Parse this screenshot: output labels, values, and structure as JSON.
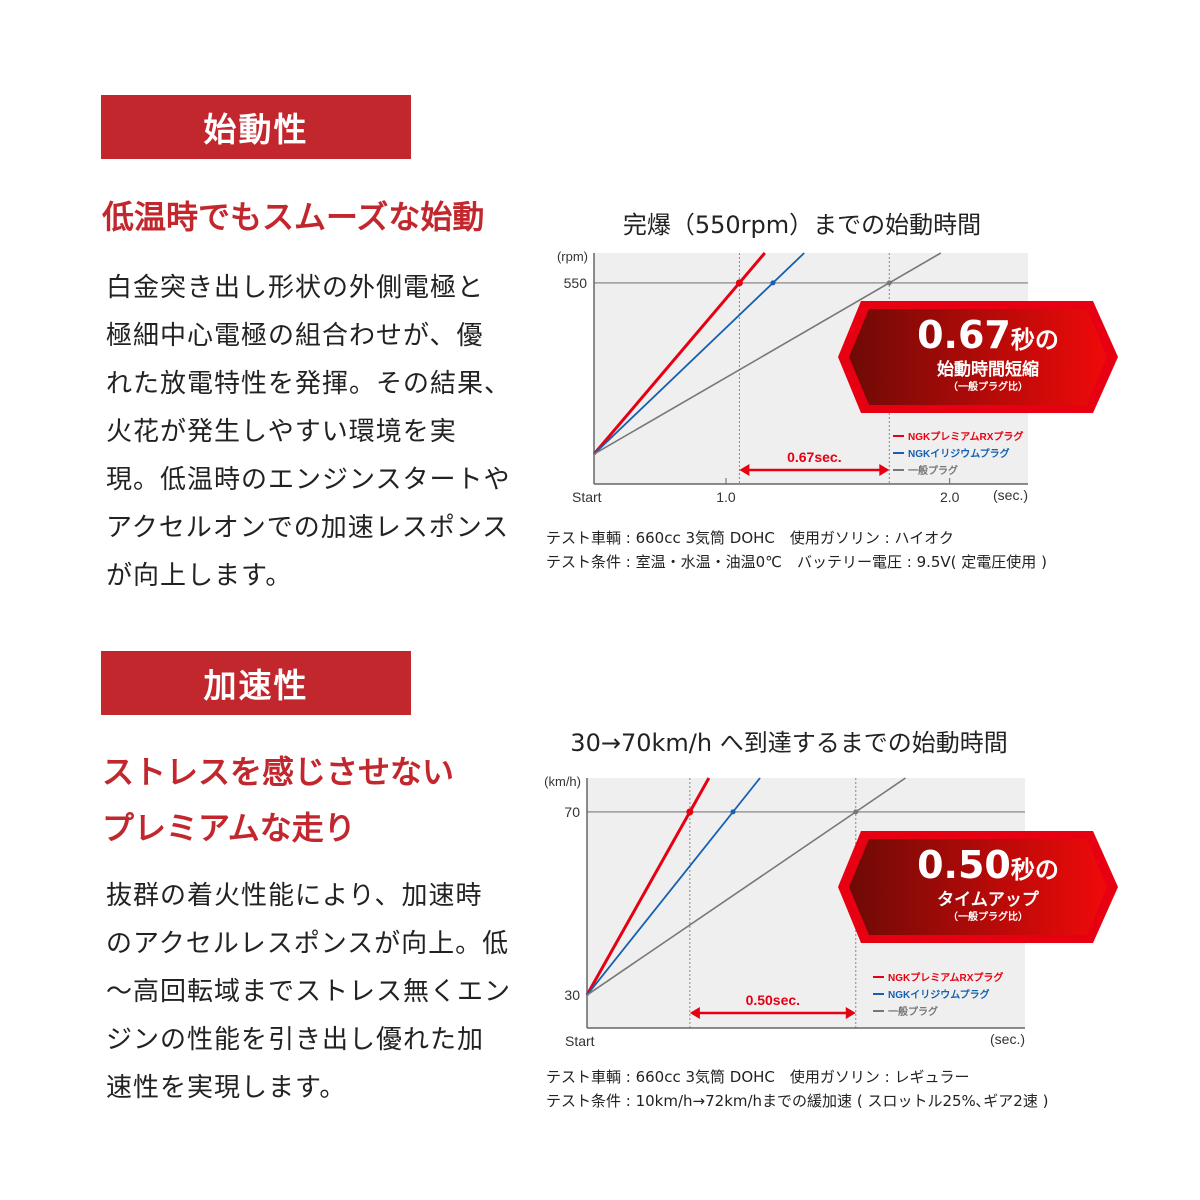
{
  "sections": [
    {
      "banner": "始動性",
      "heading_lines": [
        "低温時でもスムーズな始動"
      ],
      "body_lines": [
        "白金突き出し形状の外側電極と",
        "極細中心電極の組合わせが、優",
        "れた放電特性を発揮。その結果、",
        "火花が発生しやすい環境を実",
        "現。低温時のエンジンスタートや",
        "アクセルオンでの加速レスポンス",
        "が向上します。"
      ]
    },
    {
      "banner": "加速性",
      "heading_lines": [
        "ストレスを感じさせない",
        "プレミアムな走り"
      ],
      "body_lines": [
        "抜群の着火性能により、加速時",
        "のアクセルレスポンスが向上。低",
        "～高回転域までストレス無くエン",
        "ジンの性能を引き出し優れた加",
        "速性を実現します。"
      ]
    }
  ],
  "colors": {
    "accent": "#c1272d",
    "red_series": "#e60012",
    "blue_series": "#1560b0",
    "gray_series": "#777777",
    "plot_bg": "#efefef"
  },
  "chart_data": [
    {
      "type": "line",
      "title": "完爆（550rpm）までの始動時間",
      "ylabel": "(rpm)",
      "xlabel": "(sec.)",
      "x_start_label": "Start",
      "xticks": [
        {
          "value": 1.0,
          "label": "1.0"
        },
        {
          "value": 2.0,
          "label": "2.0"
        }
      ],
      "yticks": [
        {
          "value": 550,
          "label": "550"
        }
      ],
      "xlim": [
        0.41,
        2.35
      ],
      "ylim": [
        -96,
        646
      ],
      "grid": false,
      "target": 550,
      "series": [
        {
          "name": "NGKプレミアムRXプラグ",
          "color": "#e60012",
          "points": [
            [
              0.41,
              0
            ],
            [
              1.06,
              550
            ]
          ]
        },
        {
          "name": "NGKイリジウムプラグ",
          "color": "#1560b0",
          "points": [
            [
              0.41,
              0
            ],
            [
              1.21,
              550
            ]
          ]
        },
        {
          "name": "一般プラグ",
          "color": "#777777",
          "points": [
            [
              0.41,
              0
            ],
            [
              1.73,
              550
            ]
          ]
        }
      ],
      "difference_label": "0.67sec.",
      "legend": "bottom-right",
      "badge": {
        "big": "0.67",
        "unit": "秒の",
        "line2": "始動時間短縮",
        "line3": "（一般プラグ比）"
      },
      "notes": [
        "テスト車輌 : 660cc 3気筒 DOHC　使用ガソリン : ハイオク",
        "テスト条件 : 室温・水温・油温0℃　バッテリー電圧 : 9.5V( 定電圧使用 )"
      ]
    },
    {
      "type": "line",
      "title": "30→70km/h へ到達するまでの始動時間",
      "ylabel": "(km/h)",
      "xlabel": "(sec.)",
      "x_start_label": "Start",
      "xticks": [],
      "yticks": [
        {
          "value": 70,
          "label": "70"
        },
        {
          "value": 30,
          "label": "30"
        }
      ],
      "xlim": [
        0,
        1.32
      ],
      "ylim": [
        22.8,
        77.4
      ],
      "grid": false,
      "target": 70,
      "series": [
        {
          "name": "NGKプレミアムRXプラグ",
          "color": "#e60012",
          "points": [
            [
              0,
              30
            ],
            [
              0.31,
              70
            ]
          ]
        },
        {
          "name": "NGKイリジウムプラグ",
          "color": "#1560b0",
          "points": [
            [
              0,
              30
            ],
            [
              0.44,
              70
            ]
          ]
        },
        {
          "name": "一般プラグ",
          "color": "#777777",
          "points": [
            [
              0,
              30
            ],
            [
              0.81,
              70
            ]
          ]
        }
      ],
      "difference_label": "0.50sec.",
      "legend": "bottom-right",
      "badge": {
        "big": "0.50",
        "unit": "秒の",
        "line2": "タイムアップ",
        "line3": "（一般プラグ比）"
      },
      "notes": [
        "テスト車輌 : 660cc 3気筒 DOHC　使用ガソリン : レギュラー",
        "テスト条件 : 10km/h→72km/hまでの緩加速 ( スロットル25%､ギア2速 )"
      ]
    }
  ]
}
